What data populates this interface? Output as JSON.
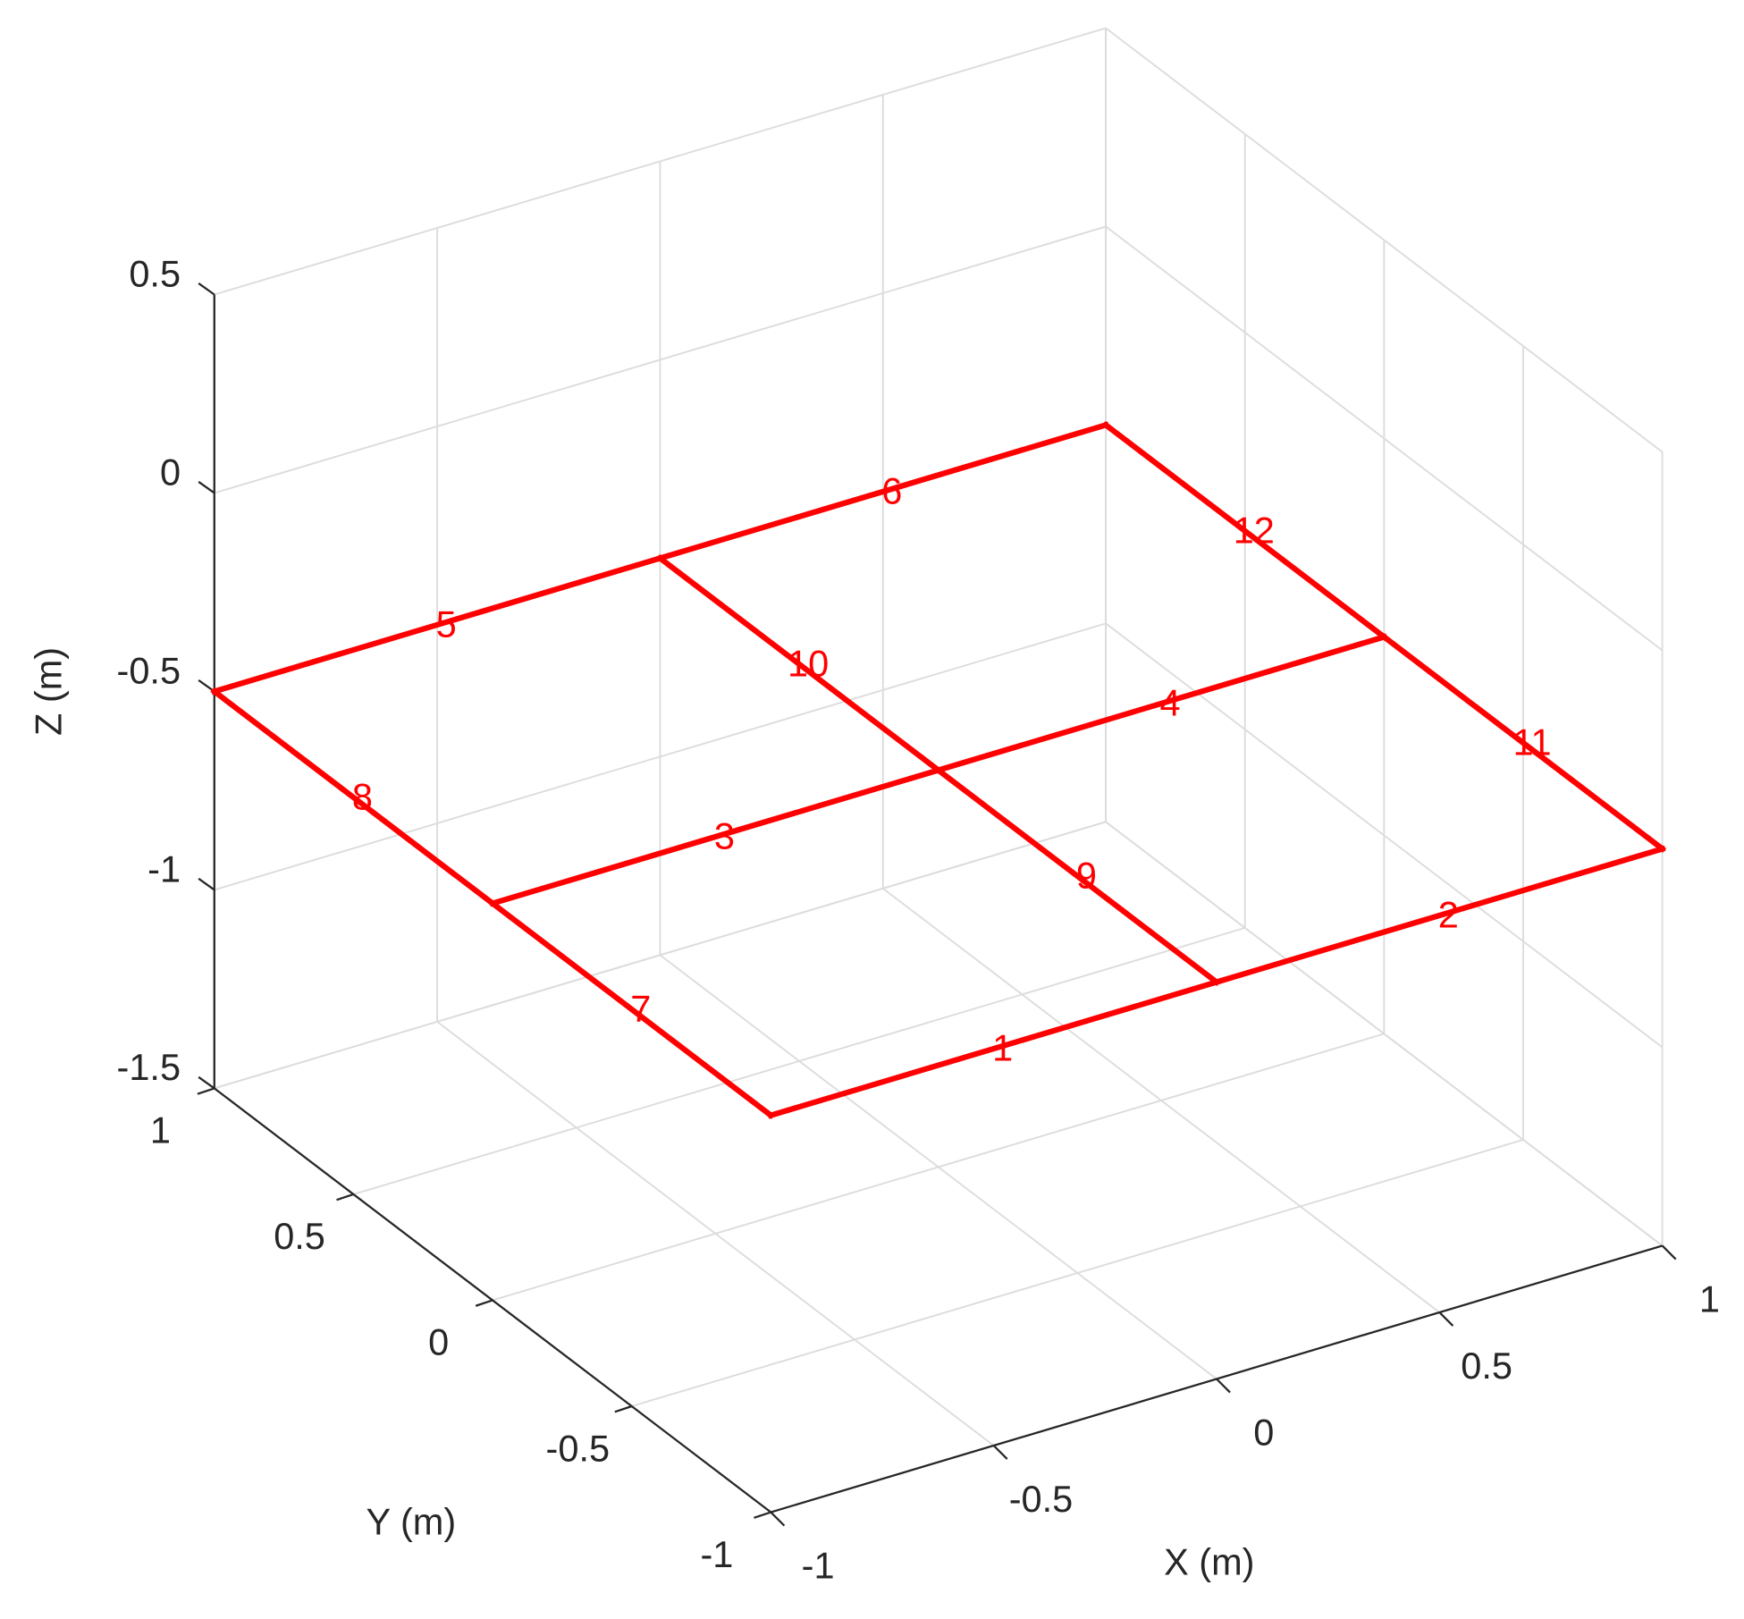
{
  "chart_data": {
    "type": "line3d",
    "xlabel": "X (m)",
    "ylabel": "Y (m)",
    "zlabel": "Z (m)",
    "xlim": [
      -1,
      1
    ],
    "ylim": [
      -1,
      1
    ],
    "zlim": [
      -1.5,
      0.5
    ],
    "xticks": [
      -1,
      -0.5,
      0,
      0.5,
      1
    ],
    "yticks": [
      -1,
      -0.5,
      0,
      0.5,
      1
    ],
    "zticks": [
      -1.5,
      -1,
      -0.5,
      0,
      0.5
    ],
    "grid": true,
    "series": [
      {
        "name": "1",
        "color": "#ff0000",
        "x": [
          -1,
          0
        ],
        "y": [
          -1,
          -1
        ],
        "z": [
          -0.5,
          -0.5
        ]
      },
      {
        "name": "2",
        "color": "#ff0000",
        "x": [
          0,
          1
        ],
        "y": [
          -1,
          -1
        ],
        "z": [
          -0.5,
          -0.5
        ]
      },
      {
        "name": "3",
        "color": "#ff0000",
        "x": [
          -1,
          0
        ],
        "y": [
          0,
          0
        ],
        "z": [
          -0.5,
          -0.5
        ]
      },
      {
        "name": "4",
        "color": "#ff0000",
        "x": [
          0,
          1
        ],
        "y": [
          0,
          0
        ],
        "z": [
          -0.5,
          -0.5
        ]
      },
      {
        "name": "5",
        "color": "#ff0000",
        "x": [
          -1,
          0
        ],
        "y": [
          1,
          1
        ],
        "z": [
          -0.5,
          -0.5
        ]
      },
      {
        "name": "6",
        "color": "#ff0000",
        "x": [
          0,
          1
        ],
        "y": [
          1,
          1
        ],
        "z": [
          -0.5,
          -0.5
        ]
      },
      {
        "name": "7",
        "color": "#ff0000",
        "x": [
          -1,
          -1
        ],
        "y": [
          -1,
          0
        ],
        "z": [
          -0.5,
          -0.5
        ]
      },
      {
        "name": "8",
        "color": "#ff0000",
        "x": [
          -1,
          -1
        ],
        "y": [
          0,
          1
        ],
        "z": [
          -0.5,
          -0.5
        ]
      },
      {
        "name": "9",
        "color": "#ff0000",
        "x": [
          0,
          0
        ],
        "y": [
          -1,
          0
        ],
        "z": [
          -0.5,
          -0.5
        ]
      },
      {
        "name": "10",
        "color": "#ff0000",
        "x": [
          0,
          0
        ],
        "y": [
          0,
          1
        ],
        "z": [
          -0.5,
          -0.5
        ]
      },
      {
        "name": "11",
        "color": "#ff0000",
        "x": [
          1,
          1
        ],
        "y": [
          -1,
          0
        ],
        "z": [
          -0.5,
          -0.5
        ]
      },
      {
        "name": "12",
        "color": "#ff0000",
        "x": [
          1,
          1
        ],
        "y": [
          0,
          1
        ],
        "z": [
          -0.5,
          -0.5
        ]
      }
    ]
  }
}
